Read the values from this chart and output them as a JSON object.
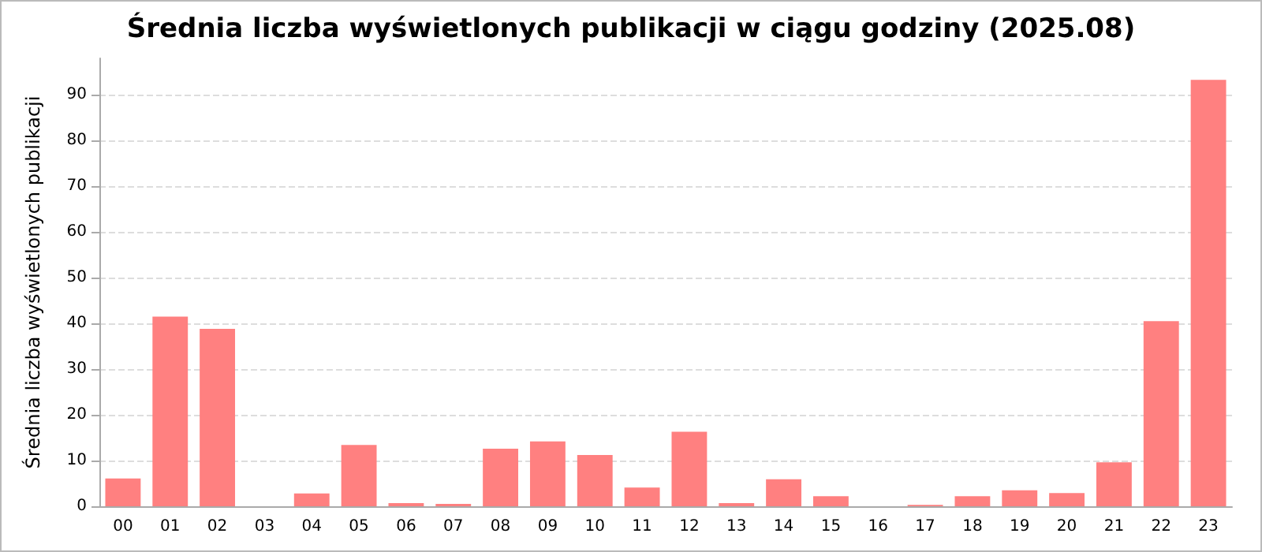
{
  "chart_data": {
    "type": "bar",
    "title": "Średnia liczba wyświetlonych publikacji w ciągu godziny (2025.08)",
    "ylabel": "Średnia liczba wyświetlonych publikacji",
    "categories": [
      "00",
      "01",
      "02",
      "03",
      "04",
      "05",
      "06",
      "07",
      "08",
      "09",
      "10",
      "11",
      "12",
      "13",
      "14",
      "15",
      "16",
      "17",
      "18",
      "19",
      "20",
      "21",
      "22",
      "23"
    ],
    "values": [
      6.1,
      41.5,
      38.8,
      0,
      2.8,
      13.4,
      0.7,
      0.5,
      12.6,
      14.2,
      11.2,
      4.1,
      16.3,
      0.7,
      5.9,
      2.2,
      0,
      0.3,
      2.2,
      3.5,
      2.9,
      9.6,
      40.5,
      93.3
    ],
    "color": "#ff8080",
    "ylim": [
      0,
      98
    ],
    "yticks": [
      0,
      10,
      20,
      30,
      40,
      50,
      60,
      70,
      80,
      90
    ],
    "grid": "y"
  }
}
